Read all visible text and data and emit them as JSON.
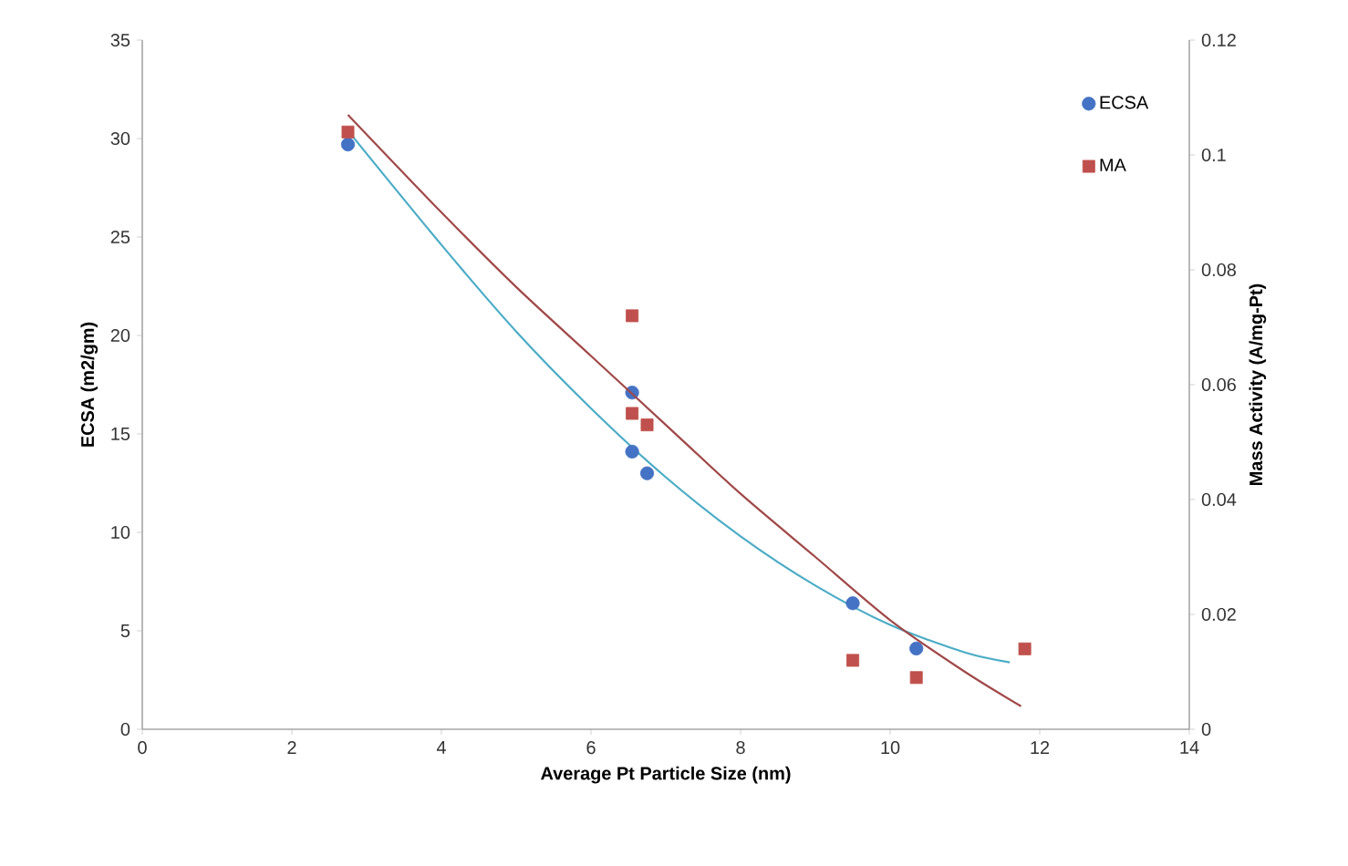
{
  "chart_data": {
    "type": "scatter",
    "xlabel": "Average Pt Particle Size (nm)",
    "ylabel": "ECSA (m2/gm)",
    "y2label": "Mass Activity (A/mg-Pt)",
    "xlim": [
      0,
      14
    ],
    "xticks": [
      0,
      2,
      4,
      6,
      8,
      10,
      12,
      14
    ],
    "ylim": [
      0,
      35
    ],
    "yticks": [
      0,
      5,
      10,
      15,
      20,
      25,
      30,
      35
    ],
    "y2lim": [
      0,
      0.12
    ],
    "y2ticks": [
      0,
      0.02,
      0.04,
      0.06,
      0.08,
      0.1,
      0.12
    ],
    "legend": "top right",
    "grid": false,
    "series": [
      {
        "name": "ECSA",
        "marker": "circle",
        "color": "#4472c4",
        "x": [
          2.75,
          6.55,
          6.55,
          6.75,
          9.5,
          10.35
        ],
        "values": [
          29.7,
          17.1,
          14.1,
          13.0,
          6.4,
          4.1
        ]
      },
      {
        "name": "MA",
        "marker": "square",
        "axis": "y2",
        "color": "#c0504d",
        "x": [
          2.75,
          6.55,
          6.55,
          6.75,
          9.5,
          10.35,
          11.8
        ],
        "values": [
          0.104,
          0.072,
          0.055,
          0.053,
          0.012,
          0.009,
          0.014
        ]
      },
      {
        "type": "line",
        "marker": "none",
        "color": "#4bacc6",
        "x": [
          2.75,
          4,
          5,
          6,
          7,
          8,
          9,
          10,
          11,
          11.6
        ],
        "values": [
          30.4,
          24.6,
          20.2,
          16.3,
          12.8,
          9.8,
          7.3,
          5.3,
          3.9,
          3.4
        ]
      },
      {
        "type": "line",
        "marker": "none",
        "axis": "y2",
        "color": "#a04848",
        "x": [
          2.75,
          4,
          5,
          6,
          7,
          8,
          9,
          10,
          11,
          11.75
        ],
        "values": [
          0.107,
          0.09,
          0.077,
          0.065,
          0.053,
          0.041,
          0.03,
          0.019,
          0.01,
          0.004
        ]
      }
    ]
  }
}
